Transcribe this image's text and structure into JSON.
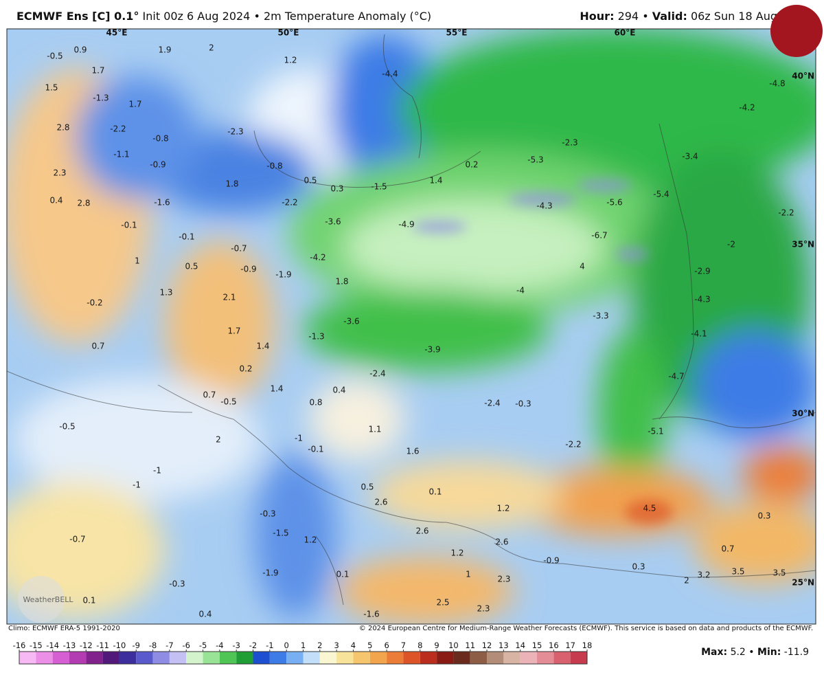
{
  "header": {
    "title_bold": "ECMWF Ens [C] 0.1°",
    "title_rest": "Init 00z 6 Aug 2024 • 2m Temperature Anomaly (°C)",
    "hour_label": "Hour:",
    "hour": "294 •",
    "valid_label": "Valid:",
    "valid": "06z Sun 18 Aug"
  },
  "map": {
    "longitude_labels": [
      "45°E",
      "50°E",
      "55°E",
      "60°E"
    ],
    "latitude_labels": [
      "40°N",
      "35°N",
      "30°N",
      "25°N"
    ],
    "anomaly_labels": [
      -0.5,
      0.9,
      1.9,
      2.0,
      1.2,
      -4.4,
      1.7,
      1.5,
      -1.3,
      1.7,
      -4.8,
      -4.2,
      2.8,
      -2.2,
      -0.8,
      -2.3,
      -2.3,
      -1.1,
      -0.9,
      -0.8,
      0.2,
      -5.3,
      -3.4,
      2.3,
      1.8,
      0.5,
      0.3,
      -1.5,
      1.4,
      0.4,
      2.8,
      -1.6,
      -2.2,
      -4.3,
      -5.6,
      -5.4,
      -2.2,
      -3.6,
      -4.9,
      -0.1,
      -0.1,
      -6.7,
      -2.0,
      -0.7,
      1.0,
      -4.2,
      0.5,
      -0.9,
      -1.9,
      4.0,
      -2.9,
      1.8,
      -4.0,
      1.3,
      2.1,
      -0.2,
      -4.3,
      -3.3,
      -3.6,
      1.7,
      -1.3,
      -4.1,
      0.7,
      1.4,
      -3.9,
      0.2,
      -2.4,
      -4.7,
      0.7,
      1.4,
      0.4,
      -0.5,
      0.8,
      -2.4,
      -0.3,
      -0.5,
      -5.1,
      1.1,
      2.0,
      -1.0,
      -0.1,
      -2.2,
      1.6,
      -1.0,
      -1.0,
      0.5,
      0.1,
      2.6,
      4.5,
      1.2,
      0.3,
      -0.3,
      -1.5,
      2.6,
      -0.7,
      1.2,
      2.6,
      1.2,
      0.7,
      -0.9,
      0.1,
      -1.9,
      1.0,
      2.3,
      0.3,
      2.0,
      3.2,
      3.5,
      3.5,
      -0.3,
      0.1,
      2.5,
      2.3,
      -1.6,
      0.4
    ],
    "logo": "WeatherBELL"
  },
  "footer": {
    "climo": "Climo: ECMWF ERA-5 1991-2020",
    "copyright": "© 2024 European Centre for Medium-Range Weather Forecasts (ECMWF). This service is based on data and products of the ECMWF.",
    "max_label": "Max:",
    "max": 5.2,
    "separator": "•",
    "min_label": "Min:",
    "min": -11.9
  },
  "colorbar": {
    "ticks": [
      -16,
      -15,
      -14,
      -13,
      -12,
      -11,
      -10,
      -9,
      -8,
      -7,
      -6,
      -5,
      -4,
      -3,
      -2,
      -1,
      0,
      1,
      2,
      3,
      4,
      5,
      6,
      7,
      8,
      9,
      10,
      11,
      12,
      13,
      14,
      15,
      16,
      17,
      18
    ],
    "colors": [
      "#f6b9f3",
      "#ec8fe7",
      "#d65fd4",
      "#b43cb3",
      "#82228c",
      "#52187a",
      "#3c2e9c",
      "#5a5acd",
      "#8f8ce3",
      "#c4c0f3",
      "#d3f3cd",
      "#98e396",
      "#4fc555",
      "#1f9e36",
      "#1d4fd0",
      "#3d7ce6",
      "#78aef2",
      "#c3def8",
      "#fbf6d2",
      "#f8e39a",
      "#f6c66e",
      "#f3a54e",
      "#ec7d38",
      "#dd5428",
      "#bb2d1c",
      "#8a1a14",
      "#6b2a1e",
      "#8d5d45",
      "#b38d78",
      "#d8b4a4",
      "#ebb3b8",
      "#e48d96",
      "#d8606f",
      "#c63b4e",
      "#a82237"
    ]
  }
}
